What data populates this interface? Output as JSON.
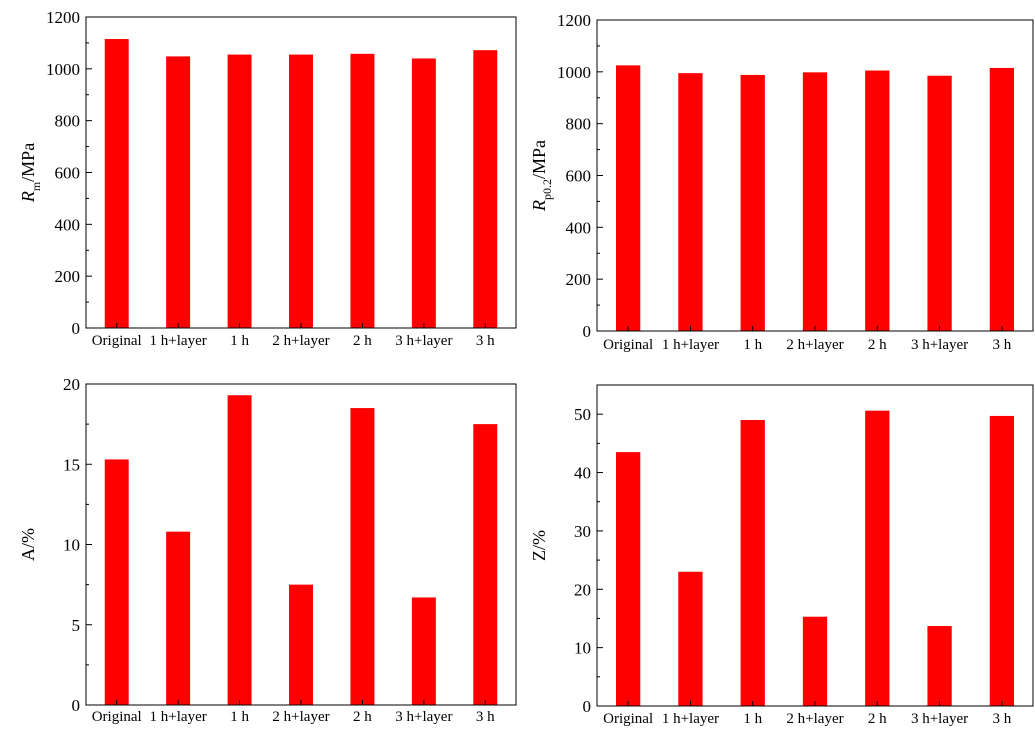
{
  "colors": {
    "bar": "#ff0000",
    "axis": "#000000",
    "background": "#ffffff"
  },
  "chart_data": [
    {
      "type": "bar",
      "categories": [
        "Original",
        "1 h+layer",
        "1 h",
        "2 h+layer",
        "2 h",
        "3 h+layer",
        "3 h"
      ],
      "values": [
        1115,
        1048,
        1055,
        1055,
        1058,
        1040,
        1072
      ],
      "ylim": [
        0,
        1200
      ],
      "yticks": [
        "0",
        "200",
        "400",
        "600",
        "800",
        "1000",
        "1200"
      ],
      "ylabel": {
        "main": "R",
        "sub": "m",
        "rest": "/MPa"
      },
      "grid": false
    },
    {
      "type": "bar",
      "categories": [
        "Original",
        "1 h+layer",
        "1 h",
        "2 h+layer",
        "2 h",
        "3 h+layer",
        "3 h"
      ],
      "values": [
        1025,
        995,
        988,
        998,
        1005,
        985,
        1015
      ],
      "ylim": [
        0,
        1200
      ],
      "yticks": [
        "0",
        "200",
        "400",
        "600",
        "800",
        "1000",
        "1200"
      ],
      "ylabel": {
        "main": "R",
        "sub": "p0.2",
        "rest": "/MPa"
      },
      "grid": false
    },
    {
      "type": "bar",
      "categories": [
        "Original",
        "1 h+layer",
        "1 h",
        "2 h+layer",
        "2 h",
        "3 h+layer",
        "3 h"
      ],
      "values": [
        15.3,
        10.8,
        19.3,
        7.5,
        18.5,
        6.7,
        17.5
      ],
      "ylim": [
        0,
        20
      ],
      "yticks": [
        "0",
        "5",
        "10",
        "15",
        "20"
      ],
      "ylabel": {
        "main": "A/%",
        "sub": "",
        "rest": ""
      },
      "grid": false
    },
    {
      "type": "bar",
      "categories": [
        "Original",
        "1 h+layer",
        "1 h",
        "2 h+layer",
        "2 h",
        "3 h+layer",
        "3 h"
      ],
      "values": [
        43.5,
        23,
        49,
        15.3,
        50.6,
        13.7,
        49.7
      ],
      "ylim": [
        0,
        55
      ],
      "yticks": [
        "0",
        "10",
        "20",
        "30",
        "40",
        "50"
      ],
      "ylabel": {
        "main": "Z/%",
        "sub": "",
        "rest": ""
      },
      "grid": false
    }
  ]
}
